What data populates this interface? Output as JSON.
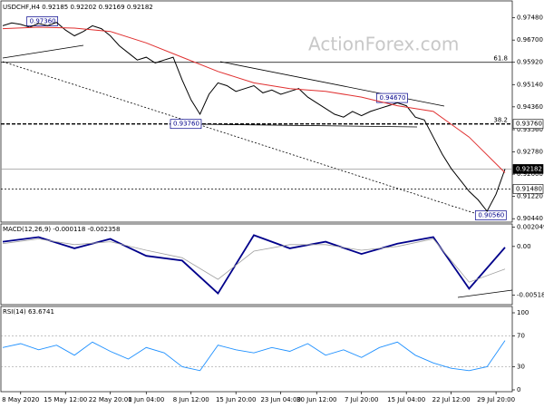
{
  "chart_data": {
    "type": "line",
    "title": "USDCHF,H4  0.92185 0.92202 0.92169 0.92182",
    "watermark": "ActionForex.com",
    "x": [
      0,
      1,
      2,
      3,
      4,
      5,
      6,
      7,
      8,
      9,
      10,
      11,
      12,
      13,
      14,
      15,
      16,
      17,
      18,
      19,
      20,
      21,
      22,
      23,
      24,
      25,
      26,
      27,
      28,
      29,
      30,
      31,
      32,
      33,
      34,
      35,
      36,
      37,
      38,
      39,
      40,
      41,
      42,
      43,
      44,
      45,
      46,
      47,
      48,
      49,
      50,
      51,
      52,
      53,
      54,
      55,
      56
    ],
    "xlim": [
      0,
      56
    ],
    "xticks": [
      {
        "value": 2,
        "label": "8 May 2020"
      },
      {
        "value": 7,
        "label": "15 May 12:00"
      },
      {
        "value": 12,
        "label": "22 May 20:00"
      },
      {
        "value": 16,
        "label": "1 Jun 04:00"
      },
      {
        "value": 21,
        "label": "8 Jun 12:00"
      },
      {
        "value": 26,
        "label": "15 Jun 20:00"
      },
      {
        "value": 31,
        "label": "23 Jun 04:00"
      },
      {
        "value": 35,
        "label": "30 Jun 12:00"
      },
      {
        "value": 40,
        "label": "7 Jul 20:00"
      },
      {
        "value": 45,
        "label": "15 Jul 04:00"
      },
      {
        "value": 50,
        "label": "22 Jul 12:00"
      },
      {
        "value": 55,
        "label": "29 Jul 20:00"
      }
    ],
    "series": [
      {
        "name": "USDCHF",
        "color": "#000000",
        "values": [
          0.972,
          0.973,
          0.9725,
          0.9715,
          0.9728,
          0.972,
          0.9732,
          0.9705,
          0.9685,
          0.97,
          0.972,
          0.971,
          0.9685,
          0.965,
          0.9625,
          0.96,
          0.961,
          0.959,
          0.96,
          0.961,
          0.953,
          0.946,
          0.941,
          0.948,
          0.952,
          0.951,
          0.949,
          0.95,
          0.951,
          0.9485,
          0.9495,
          0.948,
          0.949,
          0.95,
          0.947,
          0.945,
          0.943,
          0.941,
          0.94,
          0.942,
          0.9405,
          0.942,
          0.943,
          0.944,
          0.945,
          0.944,
          0.94,
          0.939,
          0.933,
          0.927,
          0.922,
          0.918,
          0.914,
          0.911,
          0.907,
          0.913,
          0.9218
        ]
      }
    ],
    "ma": {
      "color": "#e03030",
      "x": [
        0,
        4,
        8,
        12,
        16,
        20,
        24,
        28,
        32,
        36,
        40,
        44,
        48,
        52,
        56
      ],
      "values": [
        0.971,
        0.9715,
        0.9712,
        0.97,
        0.966,
        0.961,
        0.956,
        0.952,
        0.95,
        0.949,
        0.947,
        0.944,
        0.942,
        0.933,
        0.9205
      ]
    },
    "ylim": [
      0.9032,
      0.9804
    ],
    "yticks": [
      {
        "value": 0.9748,
        "label": "0.97480"
      },
      {
        "value": 0.967,
        "label": "0.96700"
      },
      {
        "value": 0.9592,
        "label": "0.95920"
      },
      {
        "value": 0.9514,
        "label": "0.95140"
      },
      {
        "value": 0.9436,
        "label": "0.94360"
      },
      {
        "value": 0.9356,
        "label": "0.93560"
      },
      {
        "value": 0.9278,
        "label": "0.92780"
      },
      {
        "value": 0.92,
        "label": "0.92000"
      },
      {
        "value": 0.9122,
        "label": "0.91220"
      },
      {
        "value": 0.9044,
        "label": "0.90440"
      }
    ],
    "levels": [
      {
        "value": 0.9592,
        "style": "solid",
        "note": "61.8"
      },
      {
        "value": 0.9376,
        "label": "0.93760",
        "style": "dashed",
        "note": "38.2"
      },
      {
        "value": 0.92182,
        "label": "0.92182",
        "style": "last"
      },
      {
        "value": 0.9148,
        "label": "0.91480",
        "style": "dotted"
      }
    ],
    "annotations": [
      {
        "value": 0.9736,
        "label": "0.97360",
        "x": 3
      },
      {
        "value": 0.9376,
        "label": "0.93760",
        "x": 19
      },
      {
        "value": 0.9467,
        "label": "0.94670",
        "x": 42
      },
      {
        "value": 0.9056,
        "label": "0.90560",
        "x": 53
      }
    ],
    "macd": {
      "title": "MACD(12,26,9) -0.000118 -0.002358",
      "x": [
        0,
        4,
        8,
        12,
        16,
        20,
        24,
        28,
        32,
        36,
        40,
        44,
        48,
        52,
        56
      ],
      "series": [
        {
          "name": "MACD",
          "color": "#00008b",
          "values": [
            0.0005,
            0.001,
            -0.0002,
            0.0008,
            -0.001,
            -0.0015,
            -0.005,
            0.0012,
            -0.0002,
            0.0005,
            -0.0008,
            0.0003,
            0.001,
            -0.0045,
            -0.0001
          ]
        },
        {
          "name": "Signal",
          "color": "#a0a0a0",
          "values": [
            0.0003,
            0.0008,
            0.0002,
            0.0005,
            -0.0004,
            -0.0012,
            -0.0035,
            -0.0005,
            0.0002,
            0.0002,
            -0.0004,
            0.0,
            0.0008,
            -0.0038,
            -0.0024
          ]
        }
      ],
      "ylim": [
        -0.0061,
        0.0023
      ],
      "yticks": [
        {
          "value": 0.002049,
          "label": "0.002049"
        },
        {
          "value": 0,
          "label": "0.00"
        },
        {
          "value": -0.005188,
          "label": "-0.005188"
        }
      ]
    },
    "rsi": {
      "title": "RSI(14) 63.6741",
      "color": "#1e90ff",
      "x": [
        0,
        2,
        4,
        6,
        8,
        10,
        12,
        14,
        16,
        18,
        20,
        22,
        24,
        26,
        28,
        30,
        32,
        34,
        36,
        38,
        40,
        42,
        44,
        46,
        48,
        50,
        52,
        54,
        56
      ],
      "values": [
        55,
        60,
        52,
        58,
        45,
        62,
        50,
        40,
        55,
        48,
        30,
        25,
        58,
        52,
        48,
        55,
        50,
        60,
        45,
        52,
        42,
        55,
        62,
        45,
        35,
        28,
        25,
        30,
        64
      ],
      "ylim": [
        0,
        100
      ],
      "yticks": [
        100,
        70,
        30,
        0
      ]
    }
  }
}
